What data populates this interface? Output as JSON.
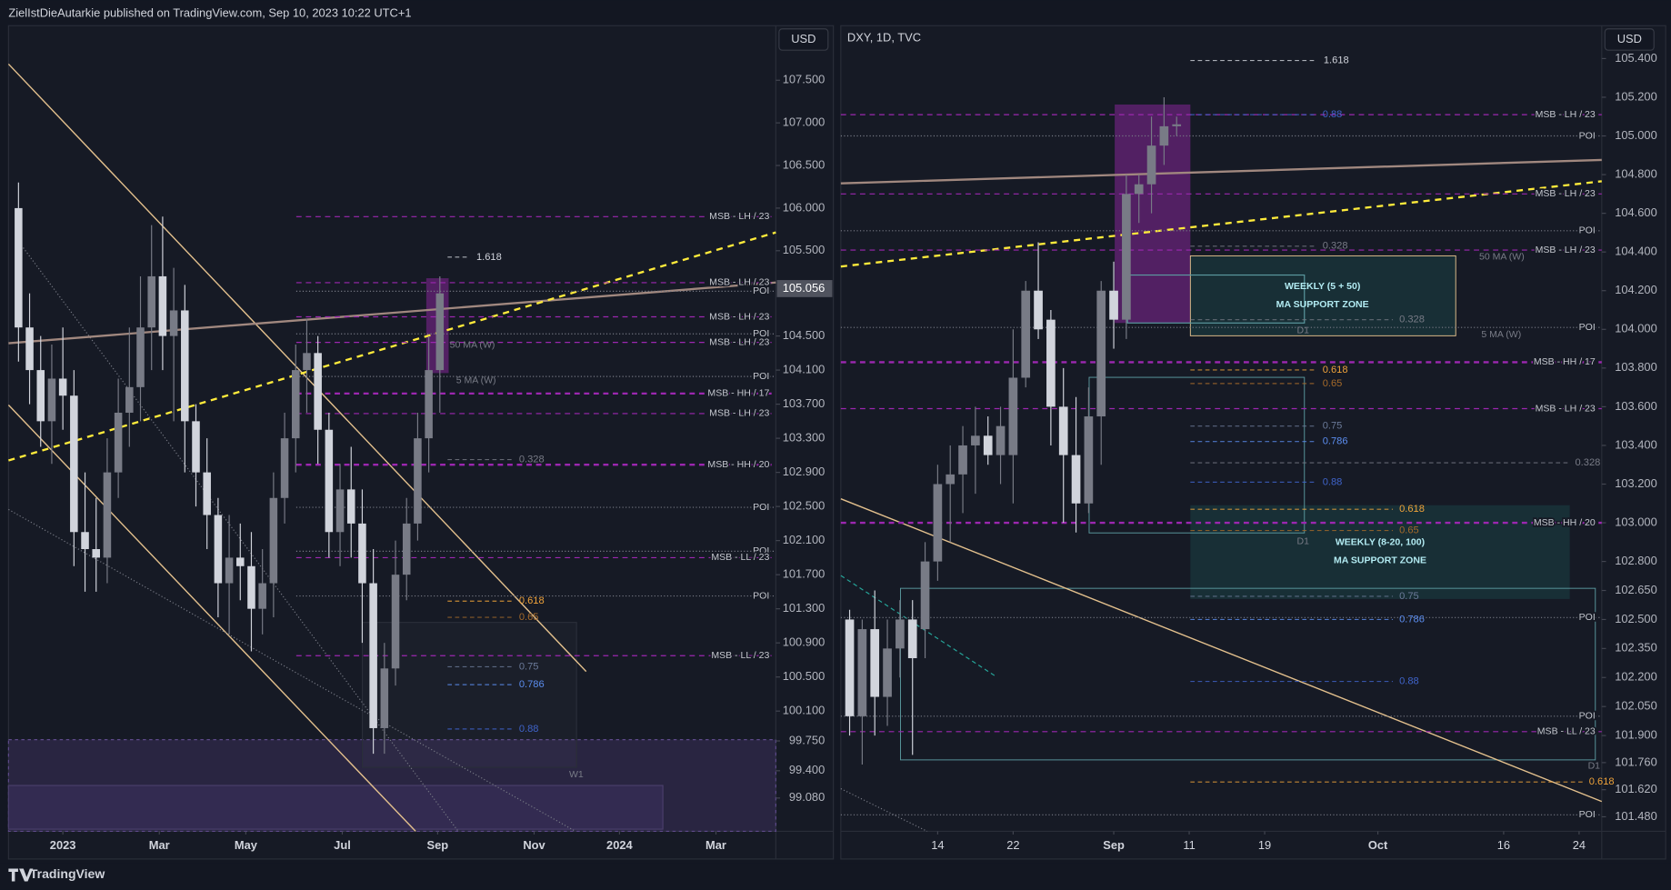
{
  "header": {
    "title": "ZielIstDieAutarkie published on TradingView.com, Sep 10, 2023 10:22 UTC+1"
  },
  "footer": {
    "brand": "TradingView"
  },
  "chart_data": [
    {
      "type": "candlestick",
      "currency": "USD",
      "last": 105.056,
      "up_color": "#787b86",
      "down_color": "#d1d4dc",
      "x": [
        -4,
        -3,
        -2,
        -1,
        0,
        1,
        2,
        3,
        4,
        5,
        6,
        7,
        8,
        9,
        10,
        11,
        12,
        13,
        14,
        15,
        16,
        17,
        18,
        19,
        20,
        21,
        22,
        23,
        24,
        25,
        26,
        27,
        28,
        29,
        30,
        31,
        32,
        33,
        34
      ],
      "open": [
        106.0,
        104.6,
        104.1,
        103.5,
        104.0,
        103.8,
        102.2,
        102.0,
        101.9,
        102.9,
        103.6,
        103.9,
        104.6,
        105.2,
        104.5,
        104.8,
        103.5,
        102.9,
        102.4,
        101.6,
        101.9,
        101.8,
        101.3,
        101.6,
        102.6,
        103.3,
        104.1,
        104.3,
        103.4,
        102.2,
        102.7,
        102.3,
        101.6,
        99.9,
        100.6,
        101.7,
        102.3,
        103.3,
        104.1
      ],
      "high": [
        106.3,
        105.0,
        104.5,
        104.4,
        104.6,
        104.1,
        102.9,
        102.6,
        103.3,
        104.0,
        104.6,
        105.2,
        105.8,
        105.9,
        105.3,
        105.1,
        103.7,
        103.3,
        102.6,
        102.4,
        102.3,
        102.2,
        102.0,
        102.9,
        103.6,
        104.4,
        104.7,
        104.5,
        103.6,
        103.0,
        103.2,
        102.7,
        102.0,
        100.9,
        102.1,
        102.6,
        103.6,
        104.5,
        105.2
      ],
      "low": [
        104.2,
        103.7,
        103.2,
        103.0,
        103.4,
        101.8,
        101.5,
        101.5,
        101.6,
        102.6,
        103.2,
        103.5,
        104.1,
        104.1,
        103.5,
        102.9,
        102.5,
        102.0,
        101.2,
        101.0,
        101.4,
        100.8,
        101.0,
        101.2,
        102.3,
        102.9,
        103.6,
        103.0,
        101.9,
        101.8,
        101.9,
        100.9,
        99.6,
        99.6,
        100.4,
        101.4,
        102.1,
        102.9,
        103.6
      ],
      "close": [
        104.6,
        104.1,
        103.5,
        104.0,
        103.8,
        102.2,
        102.0,
        101.9,
        102.9,
        103.6,
        103.9,
        104.6,
        105.2,
        104.5,
        104.8,
        103.5,
        102.9,
        102.4,
        101.6,
        101.9,
        101.8,
        101.3,
        101.6,
        102.6,
        103.3,
        104.1,
        104.3,
        103.4,
        102.2,
        102.7,
        102.3,
        101.6,
        99.9,
        100.6,
        101.7,
        102.3,
        103.3,
        104.1,
        105.0
      ],
      "xlim": [
        -4.9,
        64.3
      ],
      "xticks": [
        {
          "value": 0,
          "label": "2023"
        },
        {
          "value": 8.7,
          "label": "Mar"
        },
        {
          "value": 16.5,
          "label": "May"
        },
        {
          "value": 25.2,
          "label": "Jul"
        },
        {
          "value": 33.8,
          "label": "Sep"
        },
        {
          "value": 42.5,
          "label": "Nov"
        },
        {
          "value": 50.2,
          "label": "2024"
        },
        {
          "value": 58.9,
          "label": "Mar"
        }
      ],
      "ylim": [
        98.69,
        108.14
      ],
      "yticks": [
        {
          "value": 107.5,
          "label": "107.500"
        },
        {
          "value": 107,
          "label": "107.000"
        },
        {
          "value": 106.5,
          "label": "106.500"
        },
        {
          "value": 106,
          "label": "106.000"
        },
        {
          "value": 105.5,
          "label": "105.500"
        },
        {
          "value": 104.5,
          "label": "104.500"
        },
        {
          "value": 104.1,
          "label": "104.100"
        },
        {
          "value": 103.7,
          "label": "103.700"
        },
        {
          "value": 103.3,
          "label": "103.300"
        },
        {
          "value": 102.9,
          "label": "102.900"
        },
        {
          "value": 102.5,
          "label": "102.500"
        },
        {
          "value": 102.1,
          "label": "102.100"
        },
        {
          "value": 101.7,
          "label": "101.700"
        },
        {
          "value": 101.3,
          "label": "101.300"
        },
        {
          "value": 100.9,
          "label": "100.900"
        },
        {
          "value": 100.5,
          "label": "100.500"
        },
        {
          "value": 100.1,
          "label": "100.100"
        },
        {
          "value": 99.75,
          "label": "99.750"
        },
        {
          "value": 99.4,
          "label": "99.400"
        },
        {
          "value": 99.08,
          "label": "99.080"
        }
      ],
      "levels": [
        {
          "label": "MSB - LH / 23",
          "value": 105.9,
          "color": "#9c27b0"
        },
        {
          "label": "MSB - LH / 23",
          "value": 105.125,
          "color": "#9c27b0"
        },
        {
          "label": "POI",
          "value": 105.025,
          "color": "#787b86"
        },
        {
          "label": "MSB - LH / 23",
          "value": 104.725,
          "color": "#9c27b0"
        },
        {
          "label": "POI",
          "value": 104.525,
          "color": "#787b86"
        },
        {
          "label": "MSB - LH / 23",
          "value": 104.425,
          "color": "#9c27b0"
        },
        {
          "label": "POI",
          "value": 104.025,
          "color": "#787b86"
        },
        {
          "label": "MSB - HH / 17",
          "value": 103.825,
          "color": "#9c27b0",
          "thick": true
        },
        {
          "label": "MSB - LH / 23",
          "value": 103.59,
          "color": "#9c27b0"
        },
        {
          "label": "MSB - HH / 20",
          "value": 102.99,
          "color": "#9c27b0",
          "thick": true
        },
        {
          "label": "POI",
          "value": 102.49,
          "color": "#787b86"
        },
        {
          "label": "POI",
          "value": 101.975,
          "color": "#787b86"
        },
        {
          "label": "MSB - LL / 23",
          "value": 101.9,
          "color": "#9c27b0"
        },
        {
          "label": "POI",
          "value": 101.45,
          "color": "#787b86"
        },
        {
          "label": "MSB - LL / 23",
          "value": 100.75,
          "color": "#9c27b0"
        }
      ],
      "fibs": [
        {
          "label": 1.618,
          "value": 105.425,
          "color": "#d1d4dc"
        },
        {
          "label": 0.328,
          "value": 103.05,
          "color": "#787b86"
        },
        {
          "label": 0.618,
          "value": 101.39,
          "color": "#f0a33a"
        },
        {
          "label": 0.65,
          "value": 101.2,
          "color": "#a56a2a"
        },
        {
          "label": 0.75,
          "value": 100.62,
          "color": "#6b7a99"
        },
        {
          "label": 0.786,
          "value": 100.41,
          "color": "#5b8def"
        },
        {
          "label": 0.88,
          "value": 99.89,
          "color": "#3f63c9"
        }
      ],
      "annotations": [
        "50 MA (W)",
        "5 MA (W)",
        "W1"
      ]
    },
    {
      "type": "candlestick",
      "title": "DXY, 1D, TVC",
      "currency": "USD",
      "up_color": "#787b86",
      "down_color": "#d1d4dc",
      "x": [
        -7,
        -6,
        -5,
        -4,
        -3,
        -2,
        -1,
        0,
        1,
        2,
        3,
        4,
        5,
        6,
        7,
        8,
        9,
        10,
        11,
        12,
        13,
        14,
        15,
        16,
        17,
        18,
        19
      ],
      "open": [
        102.5,
        102.0,
        102.45,
        102.1,
        102.35,
        102.5,
        102.45,
        102.8,
        103.2,
        103.25,
        103.4,
        103.45,
        103.35,
        103.35,
        103.75,
        104.2,
        104.05,
        103.6,
        103.35,
        103.1,
        103.55,
        104.2,
        104.05,
        104.7,
        104.75,
        104.95,
        105.05
      ],
      "high": [
        102.55,
        102.5,
        102.65,
        102.5,
        102.6,
        102.6,
        102.9,
        103.3,
        103.4,
        103.5,
        103.6,
        103.55,
        103.6,
        104.0,
        104.25,
        104.45,
        104.1,
        103.8,
        103.65,
        103.7,
        104.25,
        104.35,
        104.8,
        104.8,
        105.1,
        105.2,
        105.1
      ],
      "low": [
        101.9,
        101.75,
        101.9,
        101.95,
        102.2,
        101.8,
        102.3,
        102.7,
        102.9,
        103.05,
        103.15,
        103.3,
        103.2,
        103.1,
        103.7,
        103.95,
        103.4,
        103.0,
        102.95,
        103.05,
        103.3,
        103.9,
        103.95,
        104.55,
        104.6,
        104.85,
        105.0
      ],
      "close": [
        102.0,
        102.45,
        102.1,
        102.35,
        102.5,
        102.3,
        102.8,
        103.2,
        103.25,
        103.4,
        103.45,
        103.35,
        103.5,
        103.75,
        104.2,
        104.0,
        103.6,
        103.35,
        103.1,
        103.55,
        104.2,
        104.05,
        104.7,
        104.75,
        104.95,
        105.05,
        105.06
      ],
      "xlim": [
        -7.7,
        52.8
      ],
      "xticks": [
        {
          "value": 0,
          "label": "14"
        },
        {
          "value": 6,
          "label": "22"
        },
        {
          "value": 14,
          "label": "Sep"
        },
        {
          "value": 20,
          "label": "11"
        },
        {
          "value": 26,
          "label": "19"
        },
        {
          "value": 35,
          "label": "Oct"
        },
        {
          "value": 45,
          "label": "16"
        },
        {
          "value": 51,
          "label": "24"
        }
      ],
      "ylim": [
        101.405,
        105.57
      ],
      "yticks": [
        {
          "value": 105.4,
          "label": "105.400"
        },
        {
          "value": 105.2,
          "label": "105.200"
        },
        {
          "value": 105,
          "label": "105.000"
        },
        {
          "value": 104.8,
          "label": "104.800"
        },
        {
          "value": 104.6,
          "label": "104.600"
        },
        {
          "value": 104.4,
          "label": "104.400"
        },
        {
          "value": 104.2,
          "label": "104.200"
        },
        {
          "value": 104,
          "label": "104.000"
        },
        {
          "value": 103.8,
          "label": "103.800"
        },
        {
          "value": 103.6,
          "label": "103.600"
        },
        {
          "value": 103.4,
          "label": "103.400"
        },
        {
          "value": 103.2,
          "label": "103.200"
        },
        {
          "value": 103,
          "label": "103.000"
        },
        {
          "value": 102.8,
          "label": "102.800"
        },
        {
          "value": 102.65,
          "label": "102.650"
        },
        {
          "value": 102.5,
          "label": "102.500"
        },
        {
          "value": 102.35,
          "label": "102.350"
        },
        {
          "value": 102.2,
          "label": "102.200"
        },
        {
          "value": 102.05,
          "label": "102.050"
        },
        {
          "value": 101.9,
          "label": "101.900"
        },
        {
          "value": 101.76,
          "label": "101.760"
        },
        {
          "value": 101.62,
          "label": "101.620"
        },
        {
          "value": 101.48,
          "label": "101.480"
        }
      ],
      "levels": [
        {
          "label": "MSB - LH / 23",
          "value": 105.11,
          "color": "#9c27b0"
        },
        {
          "label": "POI",
          "value": 105.0,
          "color": "#787b86"
        },
        {
          "label": "MSB - LH / 23",
          "value": 104.7,
          "color": "#9c27b0"
        },
        {
          "label": "POI",
          "value": 104.51,
          "color": "#787b86"
        },
        {
          "label": "MSB - LH / 23",
          "value": 104.41,
          "color": "#9c27b0"
        },
        {
          "label": "POI",
          "value": 104.01,
          "color": "#787b86"
        },
        {
          "label": "MSB - HH / 17",
          "value": 103.83,
          "color": "#9c27b0",
          "thick": true
        },
        {
          "label": "MSB - LH / 23",
          "value": 103.59,
          "color": "#9c27b0"
        },
        {
          "label": "MSB - HH / 20",
          "value": 103.0,
          "color": "#9c27b0",
          "thick": true
        },
        {
          "label": "POI",
          "value": 102.51,
          "color": "#787b86"
        },
        {
          "label": "POI",
          "value": 102.0,
          "color": "#787b86"
        },
        {
          "label": "MSB - LL / 23",
          "value": 101.92,
          "color": "#9c27b0"
        },
        {
          "label": "POI",
          "value": 101.49,
          "color": "#787b86"
        }
      ],
      "fibs": [
        {
          "label": 1.618,
          "value": 105.39,
          "color": "#d1d4dc"
        },
        {
          "label": 0.88,
          "value": 105.11,
          "color": "#3f63c9"
        },
        {
          "label": 0.328,
          "value": 104.43,
          "color": "#787b86"
        },
        {
          "label": 0.328,
          "value": 104.05,
          "color": "#787b86"
        },
        {
          "label": 0.618,
          "value": 103.79,
          "color": "#f0a33a"
        },
        {
          "label": 0.65,
          "value": 103.72,
          "color": "#a56a2a"
        },
        {
          "label": 0.75,
          "value": 103.5,
          "color": "#6b7a99"
        },
        {
          "label": 0.786,
          "value": 103.42,
          "color": "#5b8def"
        },
        {
          "label": 0.88,
          "value": 103.21,
          "color": "#3f63c9"
        },
        {
          "label": 0.328,
          "value": 103.31,
          "color": "#787b86"
        },
        {
          "label": 0.618,
          "value": 103.07,
          "color": "#f0a33a"
        },
        {
          "label": 0.65,
          "value": 102.96,
          "color": "#a56a2a"
        },
        {
          "label": 0.75,
          "value": 102.62,
          "color": "#6b7a99"
        },
        {
          "label": 0.786,
          "value": 102.5,
          "color": "#5b8def"
        },
        {
          "label": 0.88,
          "value": 102.18,
          "color": "#3f63c9"
        },
        {
          "label": 0.618,
          "value": 101.66,
          "color": "#f0a33a"
        }
      ],
      "annotations": [
        "WEEKLY (5 + 50)",
        "MA SUPPORT ZONE",
        "50 MA (W)",
        "5 MA (W)",
        "D1",
        "WEEKLY (8-20, 100)",
        "MA SUPPORT ZONE",
        "D1",
        "D1"
      ]
    }
  ]
}
